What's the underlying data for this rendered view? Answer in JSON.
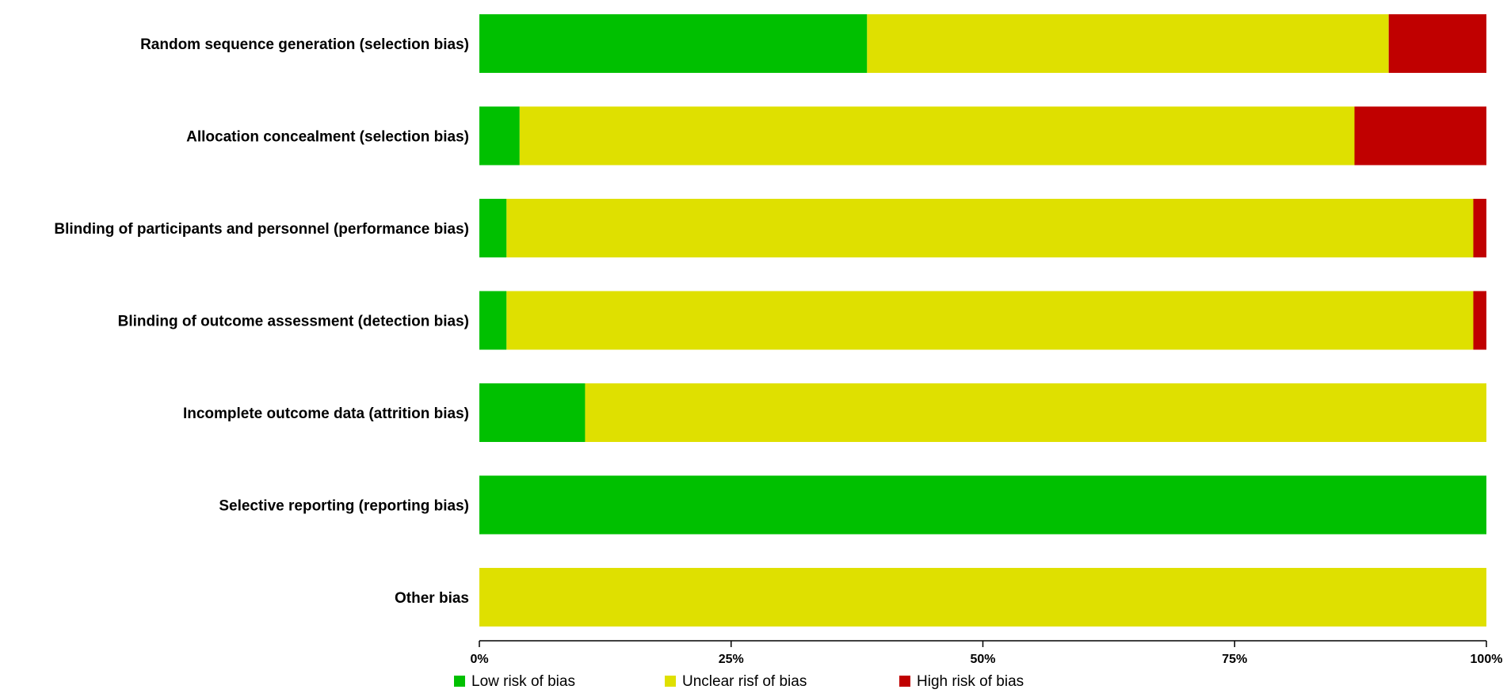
{
  "chart_data": {
    "type": "bar",
    "orientation": "horizontal",
    "stacked": true,
    "categories": [
      "Random sequence generation (selection bias)",
      "Allocation concealment (selection bias)",
      "Blinding of participants and personnel (performance bias)",
      "Blinding of outcome assessment (detection bias)",
      "Incomplete outcome data (attrition bias)",
      "Selective reporting (reporting bias)",
      "Other bias"
    ],
    "series": [
      {
        "name": "Low risk of bias",
        "color": "#00c000",
        "values": [
          38.5,
          4,
          2.7,
          2.7,
          10.5,
          100,
          0
        ]
      },
      {
        "name": "Unclear risf of bias",
        "color": "#dfe000",
        "values": [
          51.8,
          82.9,
          96,
          96,
          89.5,
          0,
          100
        ]
      },
      {
        "name": "High risk of bias",
        "color": "#c00000",
        "values": [
          9.7,
          13.1,
          1.3,
          1.3,
          0,
          0,
          0
        ]
      }
    ],
    "x_ticks": [
      "0%",
      "25%",
      "50%",
      "75%",
      "100%"
    ],
    "xlim": [
      0,
      100
    ],
    "xlabel": "",
    "ylabel": "",
    "title": "",
    "grid": false,
    "legend_position": "bottom"
  }
}
